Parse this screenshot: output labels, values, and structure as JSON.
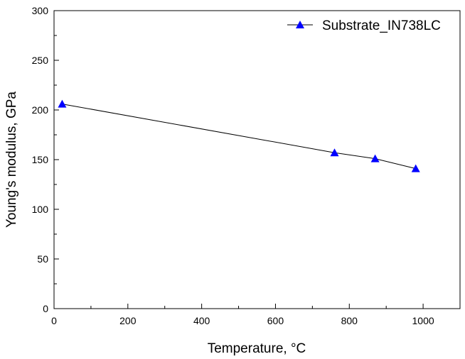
{
  "chart_data": {
    "type": "line",
    "xlabel": "Temperature, °C",
    "ylabel": "Young's modulus, GPa",
    "xlim": [
      0,
      1100
    ],
    "ylim": [
      0,
      300
    ],
    "x_ticks": [
      0,
      200,
      400,
      600,
      800,
      1000
    ],
    "y_ticks": [
      0,
      50,
      100,
      150,
      200,
      250,
      300
    ],
    "x_tick_labels": [
      "0",
      "200",
      "400",
      "600",
      "800",
      "1000"
    ],
    "y_tick_labels": [
      "0",
      "50",
      "100",
      "150",
      "200",
      "250",
      "300"
    ],
    "grid": false,
    "legend_position": "top-right",
    "series": [
      {
        "name": "Substrate_IN738LC",
        "marker": "triangle-up",
        "marker_color": "#0000ff",
        "line_color": "#000000",
        "x": [
          22,
          760,
          870,
          980
        ],
        "y": [
          206,
          157,
          151,
          141
        ]
      }
    ]
  }
}
